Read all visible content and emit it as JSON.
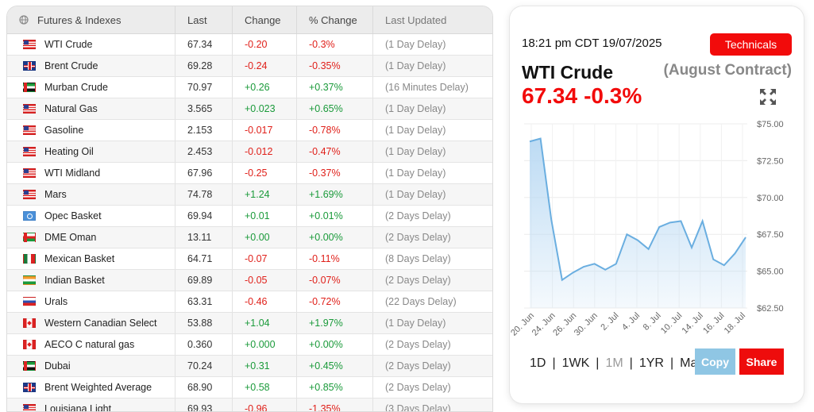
{
  "table": {
    "headers": {
      "name": "Futures & Indexes",
      "last": "Last",
      "change": "Change",
      "pct": "% Change",
      "updated": "Last Updated"
    },
    "rows": [
      {
        "flag": "us",
        "name": "WTI Crude",
        "last": "67.34",
        "change": "-0.20",
        "pct": "-0.3%",
        "delay": "(1 Day Delay)",
        "dir": "neg"
      },
      {
        "flag": "uk",
        "name": "Brent Crude",
        "last": "69.28",
        "change": "-0.24",
        "pct": "-0.35%",
        "delay": "(1 Day Delay)",
        "dir": "neg"
      },
      {
        "flag": "ae",
        "name": "Murban Crude",
        "last": "70.97",
        "change": "+0.26",
        "pct": "+0.37%",
        "delay": "(16 Minutes Delay)",
        "dir": "pos"
      },
      {
        "flag": "us",
        "name": "Natural Gas",
        "last": "3.565",
        "change": "+0.023",
        "pct": "+0.65%",
        "delay": "(1 Day Delay)",
        "dir": "pos"
      },
      {
        "flag": "us",
        "name": "Gasoline",
        "last": "2.153",
        "change": "-0.017",
        "pct": "-0.78%",
        "delay": "(1 Day Delay)",
        "dir": "neg"
      },
      {
        "flag": "us",
        "name": "Heating Oil",
        "last": "2.453",
        "change": "-0.012",
        "pct": "-0.47%",
        "delay": "(1 Day Delay)",
        "dir": "neg"
      },
      {
        "flag": "us",
        "name": "WTI Midland",
        "last": "67.96",
        "change": "-0.25",
        "pct": "-0.37%",
        "delay": "(1 Day Delay)",
        "dir": "neg"
      },
      {
        "flag": "us",
        "name": "Mars",
        "last": "74.78",
        "change": "+1.24",
        "pct": "+1.69%",
        "delay": "(1 Day Delay)",
        "dir": "pos"
      },
      {
        "flag": "un",
        "name": "Opec Basket",
        "last": "69.94",
        "change": "+0.01",
        "pct": "+0.01%",
        "delay": "(2 Days Delay)",
        "dir": "pos"
      },
      {
        "flag": "om",
        "name": "DME Oman",
        "last": "13.11",
        "change": "+0.00",
        "pct": "+0.00%",
        "delay": "(2 Days Delay)",
        "dir": "pos"
      },
      {
        "flag": "mx",
        "name": "Mexican Basket",
        "last": "64.71",
        "change": "-0.07",
        "pct": "-0.11%",
        "delay": "(8 Days Delay)",
        "dir": "neg"
      },
      {
        "flag": "in",
        "name": "Indian Basket",
        "last": "69.89",
        "change": "-0.05",
        "pct": "-0.07%",
        "delay": "(2 Days Delay)",
        "dir": "neg"
      },
      {
        "flag": "ru",
        "name": "Urals",
        "last": "63.31",
        "change": "-0.46",
        "pct": "-0.72%",
        "delay": "(22 Days Delay)",
        "dir": "neg"
      },
      {
        "flag": "ca",
        "name": "Western Canadian Select",
        "last": "53.88",
        "change": "+1.04",
        "pct": "+1.97%",
        "delay": "(1 Day Delay)",
        "dir": "pos"
      },
      {
        "flag": "ca",
        "name": "AECO C natural gas",
        "last": "0.360",
        "change": "+0.000",
        "pct": "+0.00%",
        "delay": "(2 Days Delay)",
        "dir": "pos"
      },
      {
        "flag": "ae",
        "name": "Dubai",
        "last": "70.24",
        "change": "+0.31",
        "pct": "+0.45%",
        "delay": "(2 Days Delay)",
        "dir": "pos"
      },
      {
        "flag": "uk",
        "name": "Brent Weighted Average",
        "last": "68.90",
        "change": "+0.58",
        "pct": "+0.85%",
        "delay": "(2 Days Delay)",
        "dir": "pos"
      },
      {
        "flag": "us",
        "name": "Louisiana Light",
        "last": "69.93",
        "change": "-0.96",
        "pct": "-1.35%",
        "delay": "(3 Days Delay)",
        "dir": "neg"
      }
    ]
  },
  "card": {
    "timestamp": "18:21 pm CDT 19/07/2025",
    "technicals_label": "Technicals",
    "commodity_name": "WTI Crude",
    "contract": "(August Contract)",
    "price": "67.34",
    "change_pct": "-0.3%",
    "ranges": [
      "1D",
      "1WK",
      "1M",
      "1YR",
      "Max"
    ],
    "active_range": "1M",
    "copy_label": "Copy",
    "share_label": "Share"
  },
  "colors": {
    "accent_red": "#f20b0b",
    "negative": "#e0201a",
    "positive": "#1a9a3a",
    "line": "#6aaee0",
    "fill": "#b9d9f3",
    "copy_bg": "#8fc6e4"
  },
  "icons": {
    "globe": "globe-icon",
    "expand": "expand-arrows-icon"
  },
  "chart_data": {
    "type": "area",
    "y_ticks": [
      "$75.00",
      "$72.50",
      "$70.00",
      "$67.50",
      "$65.00",
      "$62.50"
    ],
    "ylim": [
      62.5,
      75.0
    ],
    "x_tick_labels": [
      "20. Jun",
      "24. Jun",
      "26. Jun",
      "30. Jun",
      "2. Jul",
      "4. Jul",
      "8. Jul",
      "10. Jul",
      "14. Jul",
      "16. Jul",
      "18. Jul"
    ],
    "x": [
      "20. Jun",
      "21. Jun",
      "23. Jun",
      "24. Jun",
      "25. Jun",
      "26. Jun",
      "27. Jun",
      "30. Jun",
      "1. Jul",
      "2. Jul",
      "3. Jul",
      "7. Jul",
      "8. Jul",
      "9. Jul",
      "10. Jul",
      "11. Jul",
      "14. Jul",
      "15. Jul",
      "16. Jul",
      "17. Jul",
      "18. Jul"
    ],
    "values": [
      73.8,
      74.0,
      68.5,
      64.4,
      64.9,
      65.3,
      65.5,
      65.1,
      65.5,
      67.5,
      67.1,
      66.5,
      68.0,
      68.3,
      68.4,
      66.6,
      68.4,
      65.8,
      65.4,
      66.2,
      67.3
    ],
    "grid": true
  }
}
